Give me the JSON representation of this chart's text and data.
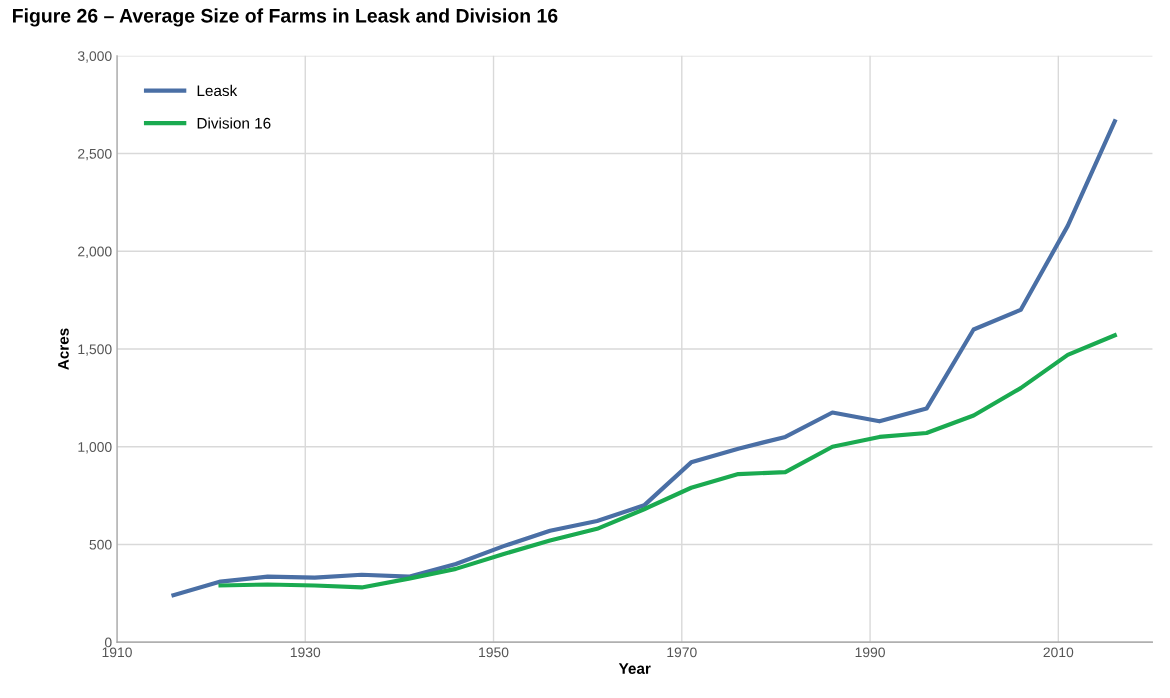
{
  "chart_data": {
    "type": "line",
    "title": "Figure 26 – Average Size of Farms in Leask and Division 16",
    "xlabel": "Year",
    "ylabel": "Acres",
    "x": [
      1916,
      1921,
      1926,
      1931,
      1936,
      1941,
      1946,
      1951,
      1956,
      1961,
      1966,
      1971,
      1976,
      1981,
      1986,
      1991,
      1996,
      2001,
      2006,
      2011,
      2016
    ],
    "series": [
      {
        "name": "Leask",
        "color": "#4a6fa5",
        "values": [
          240,
          310,
          335,
          330,
          345,
          335,
          400,
          490,
          570,
          620,
          700,
          920,
          990,
          1050,
          1175,
          1130,
          1195,
          1600,
          1700,
          2130,
          2665
        ]
      },
      {
        "name": "Division 16",
        "color": "#1aaa50",
        "values": [
          null,
          290,
          295,
          290,
          280,
          325,
          375,
          450,
          520,
          580,
          680,
          790,
          860,
          870,
          1000,
          1050,
          1070,
          1160,
          1300,
          1470,
          1570
        ]
      }
    ],
    "xlim": [
      1910,
      2020
    ],
    "xticks": [
      1910,
      1930,
      1950,
      1970,
      1990,
      2010
    ],
    "ylim": [
      0,
      3000
    ],
    "yticks": [
      {
        "value": 0,
        "label": "0"
      },
      {
        "value": 500,
        "label": "500"
      },
      {
        "value": 1000,
        "label": "1,000"
      },
      {
        "value": 1500,
        "label": "1,500"
      },
      {
        "value": 2000,
        "label": "2,000"
      },
      {
        "value": 2500,
        "label": "2,500"
      },
      {
        "value": 3000,
        "label": "3,000"
      }
    ],
    "grid": true,
    "legend": "top left",
    "line_style": "solid"
  }
}
